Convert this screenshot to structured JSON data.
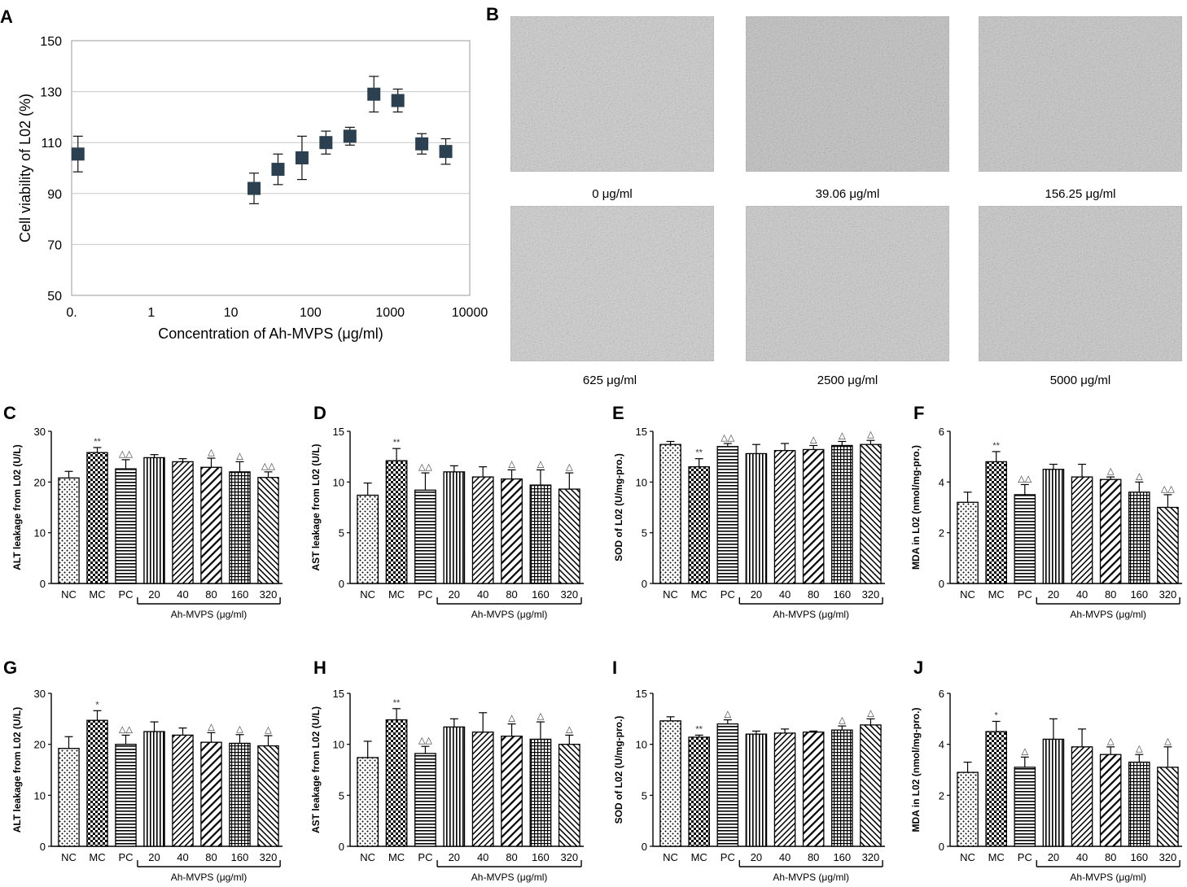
{
  "panel_letters": [
    "A",
    "B",
    "C",
    "D",
    "E",
    "F",
    "G",
    "H",
    "I",
    "J"
  ],
  "micrographs": {
    "labels": [
      "0 μg/ml",
      "39.06 μg/ml",
      "156.25 μg/ml",
      "625 μg/ml",
      "2500 μg/ml",
      "5000 μg/ml"
    ],
    "tones": [
      "#d4d4d4",
      "#cbcbcb",
      "#cfcfcf",
      "#d6d6d6",
      "#d3d3d3",
      "#d1d1d1"
    ]
  },
  "chart_data": [
    {
      "id": "A",
      "type": "scatter",
      "title": "",
      "xlabel": "Concentration of Ah-MVPS (μg/ml)",
      "ylabel": "Cell viability of L02 (%)",
      "xscale": "log",
      "xlim": [
        0.1,
        10000
      ],
      "ylim": [
        50,
        150
      ],
      "x_ticks": [
        0.1,
        1,
        10,
        100,
        1000,
        10000
      ],
      "x_tick_labels": [
        "0.",
        "1",
        "10",
        "100",
        "1000",
        "10000"
      ],
      "y_ticks": [
        50,
        70,
        90,
        110,
        130,
        150
      ],
      "grid": true,
      "marker_color": "#2b4050",
      "x": [
        0.12,
        19.53,
        39.06,
        78.13,
        156.25,
        312.5,
        625,
        1250,
        2500,
        5000
      ],
      "y": [
        105.5,
        92,
        99.5,
        104,
        110,
        112.5,
        129,
        126.5,
        109.5,
        106.5
      ],
      "err": [
        7,
        6,
        6,
        8.5,
        4.5,
        3.5,
        7,
        4.5,
        4,
        5
      ]
    },
    {
      "id": "C",
      "type": "bar",
      "ylabel": "ALT leakage from L02 (U/L)",
      "ylim": [
        0,
        30
      ],
      "y_ticks": [
        0,
        10,
        20,
        30
      ],
      "categories": [
        "NC",
        "MC",
        "PC",
        "20",
        "40",
        "80",
        "160",
        "320"
      ],
      "group_label": "Ah-MVPS (μg/ml)",
      "values": [
        20.8,
        25.8,
        22.6,
        24.8,
        24.0,
        22.9,
        22.0,
        20.9
      ],
      "errors": [
        1.3,
        1.0,
        1.8,
        0.6,
        0.6,
        1.8,
        2.0,
        1.1
      ],
      "annotations": [
        "",
        "**",
        "△△",
        "",
        "",
        "△",
        "△",
        "△△"
      ]
    },
    {
      "id": "D",
      "type": "bar",
      "ylabel": "AST leakage from L02 (U/L)",
      "ylim": [
        0,
        15
      ],
      "y_ticks": [
        0,
        5,
        10,
        15
      ],
      "categories": [
        "NC",
        "MC",
        "PC",
        "20",
        "40",
        "80",
        "160",
        "320"
      ],
      "group_label": "Ah-MVPS (μg/ml)",
      "values": [
        8.7,
        12.1,
        9.2,
        11.0,
        10.5,
        10.3,
        9.7,
        9.3
      ],
      "errors": [
        1.2,
        1.2,
        1.7,
        0.6,
        1.0,
        0.9,
        1.5,
        1.6
      ],
      "annotations": [
        "",
        "**",
        "△△",
        "",
        "",
        "△",
        "△",
        "△"
      ]
    },
    {
      "id": "E",
      "type": "bar",
      "ylabel": "SOD of L02 (U/mg-pro.)",
      "ylim": [
        0,
        15
      ],
      "y_ticks": [
        0,
        5,
        10,
        15
      ],
      "categories": [
        "NC",
        "MC",
        "PC",
        "20",
        "40",
        "80",
        "160",
        "320"
      ],
      "group_label": "Ah-MVPS (μg/ml)",
      "values": [
        13.7,
        11.5,
        13.5,
        12.8,
        13.1,
        13.2,
        13.6,
        13.7
      ],
      "errors": [
        0.3,
        0.8,
        0.3,
        0.9,
        0.7,
        0.4,
        0.4,
        0.4
      ],
      "annotations": [
        "",
        "**",
        "△△",
        "",
        "",
        "△",
        "△",
        "△"
      ]
    },
    {
      "id": "F",
      "type": "bar",
      "ylabel": "MDA in L02 (nmol/mg-pro.)",
      "ylim": [
        0,
        6
      ],
      "y_ticks": [
        0,
        2,
        4,
        6
      ],
      "categories": [
        "NC",
        "MC",
        "PC",
        "20",
        "40",
        "80",
        "160",
        "320"
      ],
      "group_label": "Ah-MVPS (μg/ml)",
      "values": [
        3.2,
        4.8,
        3.5,
        4.5,
        4.2,
        4.1,
        3.6,
        3.0
      ],
      "errors": [
        0.4,
        0.4,
        0.4,
        0.2,
        0.5,
        0.1,
        0.4,
        0.5
      ],
      "annotations": [
        "",
        "**",
        "△△",
        "",
        "",
        "△",
        "△",
        "△△"
      ]
    },
    {
      "id": "G",
      "type": "bar",
      "ylabel": "ALT leakage from L02 (U/L)",
      "ylim": [
        0,
        30
      ],
      "y_ticks": [
        0,
        10,
        20,
        30
      ],
      "categories": [
        "NC",
        "MC",
        "PC",
        "20",
        "40",
        "80",
        "160",
        "320"
      ],
      "group_label": "Ah-MVPS (μg/ml)",
      "values": [
        19.2,
        24.7,
        20.0,
        22.5,
        21.8,
        20.4,
        20.2,
        19.7
      ],
      "errors": [
        2.3,
        1.9,
        1.8,
        1.9,
        1.4,
        1.9,
        1.7,
        2.0
      ],
      "annotations": [
        "",
        "*",
        "△△",
        "",
        "",
        "△",
        "△",
        "△"
      ]
    },
    {
      "id": "H",
      "type": "bar",
      "ylabel": "AST leakage from L02 (U/L)",
      "ylim": [
        0,
        15
      ],
      "y_ticks": [
        0,
        5,
        10,
        15
      ],
      "categories": [
        "NC",
        "MC",
        "PC",
        "20",
        "40",
        "80",
        "160",
        "320"
      ],
      "group_label": "Ah-MVPS (μg/ml)",
      "values": [
        8.7,
        12.4,
        9.1,
        11.7,
        11.2,
        10.8,
        10.5,
        10.0
      ],
      "errors": [
        1.6,
        1.1,
        0.7,
        0.8,
        1.9,
        1.2,
        1.7,
        0.9
      ],
      "annotations": [
        "",
        "**",
        "△△",
        "",
        "",
        "△",
        "△",
        "△"
      ]
    },
    {
      "id": "I",
      "type": "bar",
      "ylabel": "SOD of L02 (U/mg-pro.)",
      "ylim": [
        0,
        15
      ],
      "y_ticks": [
        0,
        5,
        10,
        15
      ],
      "categories": [
        "NC",
        "MC",
        "PC",
        "20",
        "40",
        "80",
        "160",
        "320"
      ],
      "group_label": "Ah-MVPS (μg/ml)",
      "values": [
        12.3,
        10.7,
        12.0,
        11.0,
        11.1,
        11.2,
        11.4,
        11.9
      ],
      "errors": [
        0.4,
        0.2,
        0.4,
        0.3,
        0.4,
        0.1,
        0.4,
        0.6
      ],
      "annotations": [
        "",
        "**",
        "△",
        "",
        "",
        "",
        "△",
        "△"
      ]
    },
    {
      "id": "J",
      "type": "bar",
      "ylabel": "MDA in L02 (nmol/mg-pro.)",
      "ylim": [
        0,
        6
      ],
      "y_ticks": [
        0,
        2,
        4,
        6
      ],
      "categories": [
        "NC",
        "MC",
        "PC",
        "20",
        "40",
        "80",
        "160",
        "320"
      ],
      "group_label": "Ah-MVPS (μg/ml)",
      "values": [
        2.9,
        4.5,
        3.1,
        4.2,
        3.9,
        3.6,
        3.3,
        3.1
      ],
      "errors": [
        0.4,
        0.4,
        0.4,
        0.8,
        0.7,
        0.3,
        0.3,
        0.8
      ],
      "annotations": [
        "",
        "*",
        "△",
        "",
        "",
        "△",
        "△",
        "△"
      ]
    }
  ]
}
